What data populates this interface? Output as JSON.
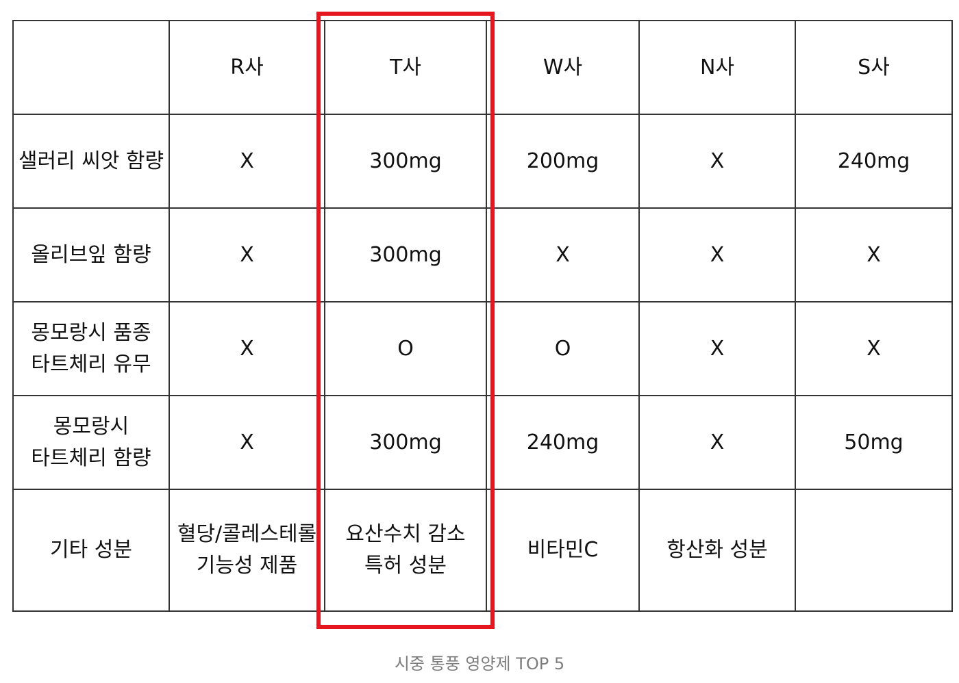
{
  "table": {
    "header": [
      "",
      "R사",
      "T사",
      "W사",
      "N사",
      "S사"
    ],
    "rows": [
      [
        "샐러리 씨앗 함량",
        "X",
        "300mg",
        "200mg",
        "X",
        "240mg"
      ],
      [
        "올리브잎 함량",
        "X",
        "300mg",
        "X",
        "X",
        "X"
      ],
      [
        "몽모랑시 품종\n타트체리 유무",
        "X",
        "O",
        "O",
        "X",
        "X"
      ],
      [
        "몽모랑시\n타트체리 함량",
        "X",
        "300mg",
        "240mg",
        "X",
        "50mg"
      ],
      [
        "기타 성분",
        "혈당/콜레스테롤\n기능성 제품",
        "요산수치 감소\n특허 성분",
        "비타민C",
        "항산화 성분",
        ""
      ]
    ]
  },
  "highlight": {
    "column": "T사",
    "color": "#e5161f"
  },
  "caption": "시중 통풍 영양제 TOP 5"
}
